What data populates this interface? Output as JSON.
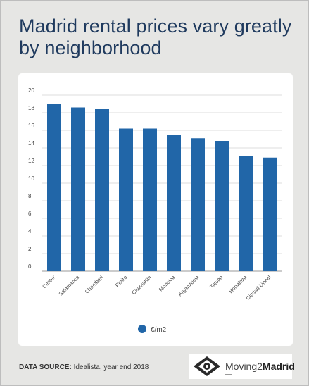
{
  "page": {
    "title": "Madrid rental prices vary greatly by neighborhood",
    "source_label": "DATA SOURCE:",
    "source_text": " Idealista, year end 2018",
    "logo": {
      "text_regular": "Moving2",
      "text_bold": "Madrid"
    }
  },
  "colors": {
    "bar": "#2166a8",
    "grid": "#dcdcdc",
    "axis": "#444444",
    "title": "#1f3a5e"
  },
  "chart_data": {
    "type": "bar",
    "title": "",
    "xlabel": "",
    "ylabel": "",
    "categories": [
      "Center",
      "Salamanca",
      "Chamberí",
      "Retiro",
      "Chamartín",
      "Moncloa",
      "Arganzuela",
      "Tetuán",
      "Hortaleza",
      "Ciudad Lineal"
    ],
    "series": [
      {
        "name": "€/m2",
        "values": [
          19.0,
          18.6,
          18.4,
          16.2,
          16.2,
          15.5,
          15.1,
          14.8,
          13.1,
          12.9
        ]
      }
    ],
    "ylim": [
      0,
      20
    ],
    "yticks": [
      0,
      2,
      4,
      6,
      8,
      10,
      12,
      14,
      16,
      18,
      20
    ],
    "grid": true,
    "legend_position": "bottom-center"
  }
}
